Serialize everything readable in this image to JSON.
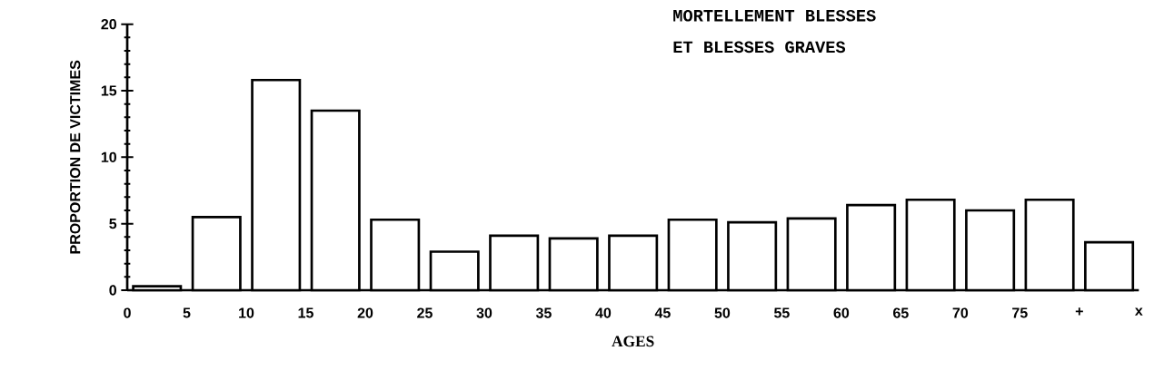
{
  "chart_data": {
    "type": "histogram",
    "title": "MORTELLEMENT BLESSES\nET BLESSES GRAVES",
    "xlabel": "AGES",
    "ylabel": "PROPORTION DE VICTIMES",
    "bins": [
      0,
      5,
      10,
      15,
      20,
      25,
      30,
      35,
      40,
      45,
      50,
      55,
      60,
      65,
      70,
      75,
      80,
      85
    ],
    "values": [
      0.3,
      5.5,
      15.8,
      13.5,
      5.3,
      2.9,
      4.1,
      3.9,
      4.1,
      5.3,
      5.1,
      5.4,
      6.4,
      6.8,
      6.0,
      6.8,
      3.6
    ],
    "color": "#ffffff",
    "xlim": [
      0,
      85
    ],
    "xticks": [
      0,
      5,
      10,
      15,
      20,
      25,
      30,
      35,
      40,
      45,
      50,
      55,
      60,
      65,
      70,
      75,
      {
        "value": 80,
        "label": "+"
      },
      {
        "value": 85,
        "label": "x"
      }
    ],
    "ylim": [
      0,
      20
    ],
    "yticks": [
      0,
      5,
      10,
      15,
      20
    ],
    "grid": false
  }
}
